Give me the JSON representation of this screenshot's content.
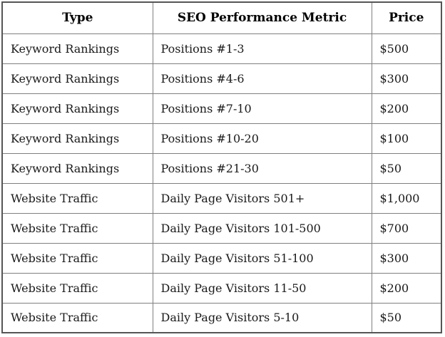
{
  "colors": {
    "border_inner": "#7f7f7f",
    "border_outer": "#555555",
    "text": "#1a1a1a",
    "background": "#ffffff"
  },
  "table": {
    "headers": [
      "Type",
      "SEO Performance Metric",
      "Price"
    ],
    "rows": [
      {
        "type": "Keyword Rankings",
        "metric": "Positions #1-3",
        "price": "$500"
      },
      {
        "type": "Keyword Rankings",
        "metric": "Positions #4-6",
        "price": "$300"
      },
      {
        "type": "Keyword Rankings",
        "metric": "Positions #7-10",
        "price": "$200"
      },
      {
        "type": "Keyword Rankings",
        "metric": "Positions #10-20",
        "price": "$100"
      },
      {
        "type": "Keyword Rankings",
        "metric": "Positions #21-30",
        "price": "$50"
      },
      {
        "type": "Website Traffic",
        "metric": "Daily Page Visitors 501+",
        "price": "$1,000"
      },
      {
        "type": "Website Traffic",
        "metric": "Daily Page Visitors 101-500",
        "price": "$700"
      },
      {
        "type": "Website Traffic",
        "metric": "Daily Page Visitors 51-100",
        "price": "$300"
      },
      {
        "type": "Website Traffic",
        "metric": "Daily Page Visitors 11-50",
        "price": "$200"
      },
      {
        "type": "Website Traffic",
        "metric": "Daily Page Visitors 5-10",
        "price": "$50"
      }
    ]
  }
}
